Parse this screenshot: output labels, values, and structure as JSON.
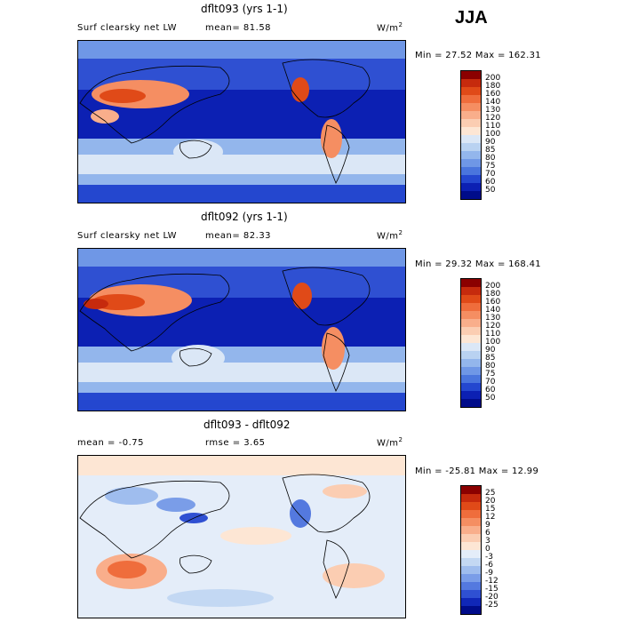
{
  "season": "JJA",
  "panels": [
    {
      "title": "dflt093 (yrs 1-1)",
      "left_label": "Surf clearsky net LW",
      "mid_label": "mean=  81.58",
      "units": "W/m",
      "units_sup": "2",
      "range": "Min =  27.52 Max = 162.31",
      "colorbar_labels": [
        "200",
        "180",
        "160",
        "140",
        "130",
        "120",
        "110",
        "100",
        "90",
        "85",
        "80",
        "75",
        "70",
        "60",
        "50"
      ],
      "colorbar_colors": [
        "#8b0000",
        "#c62a0d",
        "#e04a18",
        "#ef6d3c",
        "#f58e62",
        "#f9ae8b",
        "#fbcdb2",
        "#fde6d4",
        "#dbe7f6",
        "#b9d2f1",
        "#93b6ec",
        "#6f97e6",
        "#4a75dd",
        "#2447cf",
        "#0c20b3",
        "#000c8a"
      ]
    },
    {
      "title": "dflt092 (yrs 1-1)",
      "left_label": "Surf clearsky net LW",
      "mid_label": "mean=  82.33",
      "units": "W/m",
      "units_sup": "2",
      "range": "Min =  29.32 Max = 168.41",
      "colorbar_labels": [
        "200",
        "180",
        "160",
        "140",
        "130",
        "120",
        "110",
        "100",
        "90",
        "85",
        "80",
        "75",
        "70",
        "60",
        "50"
      ],
      "colorbar_colors": [
        "#8b0000",
        "#c62a0d",
        "#e04a18",
        "#ef6d3c",
        "#f58e62",
        "#f9ae8b",
        "#fbcdb2",
        "#fde6d4",
        "#dbe7f6",
        "#b9d2f1",
        "#93b6ec",
        "#6f97e6",
        "#4a75dd",
        "#2447cf",
        "#0c20b3",
        "#000c8a"
      ]
    },
    {
      "title": "dflt093 - dflt092",
      "left_label": "mean =  -0.75",
      "mid_label": "rmse =   3.65",
      "units": "W/m",
      "units_sup": "2",
      "range": "Min = -25.81 Max =  12.99",
      "colorbar_labels": [
        "25",
        "20",
        "15",
        "12",
        "9",
        "6",
        "3",
        "0",
        "-3",
        "-6",
        "-9",
        "-12",
        "-15",
        "-20",
        "-25"
      ],
      "colorbar_colors": [
        "#8b0000",
        "#c62a0d",
        "#e04a18",
        "#ef6d3c",
        "#f58e62",
        "#f9ae8b",
        "#fbcdb2",
        "#fde6d4",
        "#e4edf9",
        "#c3d8f3",
        "#9fbdee",
        "#7a9de8",
        "#5479df",
        "#2f50d2",
        "#1027b8",
        "#000c8a"
      ]
    }
  ]
}
